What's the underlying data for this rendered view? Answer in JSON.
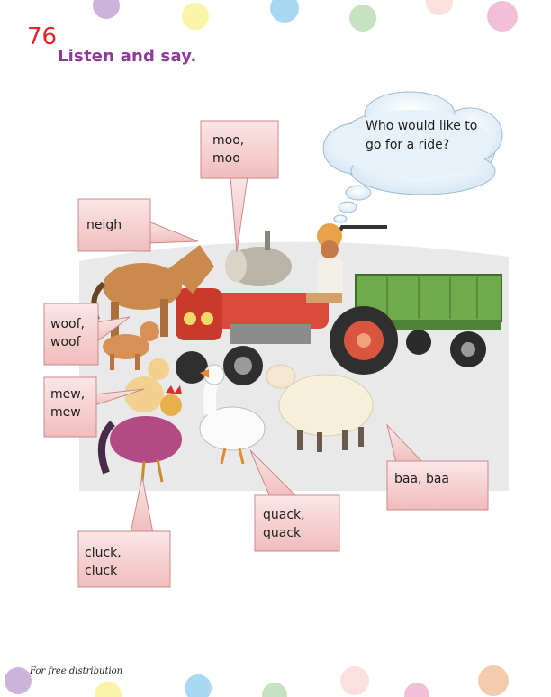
{
  "page": {
    "number": "76",
    "heading": "Listen and say.",
    "footer": "For free distribution"
  },
  "thought_bubble": {
    "line1": "Who would like to",
    "line2": "go for a ride?"
  },
  "labels": {
    "moo": {
      "line1": "moo,",
      "line2": "moo"
    },
    "neigh": {
      "line1": "neigh"
    },
    "woof": {
      "line1": "woof,",
      "line2": "woof"
    },
    "mew": {
      "line1": "mew,",
      "line2": "mew"
    },
    "cluck": {
      "line1": "cluck,",
      "line2": "cluck"
    },
    "quack": {
      "line1": "quack,",
      "line2": "quack"
    },
    "baa": {
      "line1": "baa, baa"
    }
  },
  "colors": {
    "page_number": "#e0262a",
    "heading": "#8e3a9a",
    "label_fill": "#f7d6d6",
    "label_border": "#c98a8a",
    "cloud": "#dfeef8"
  }
}
